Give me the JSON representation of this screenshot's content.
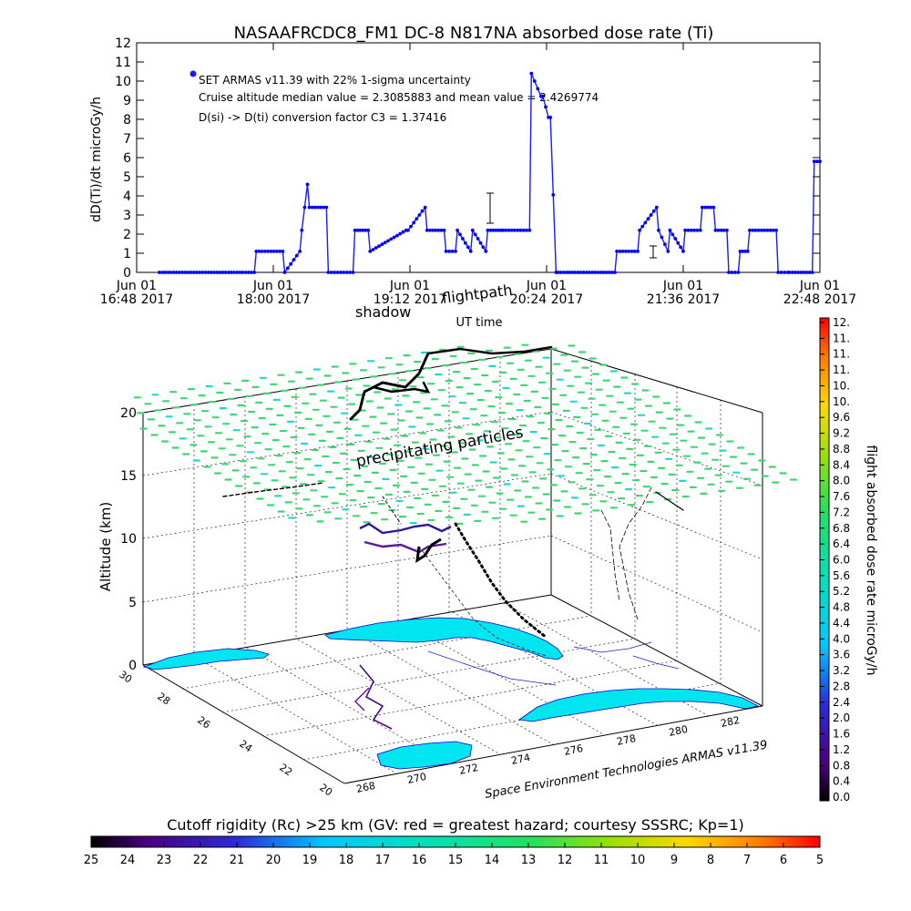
{
  "chart_data": [
    {
      "type": "line",
      "title": "NASAAFRCDC8_FM1 DC-8   N817NA absorbed dose rate (Ti)",
      "xlabel": "UT time",
      "ylabel": "dD(Ti)/dt microGy/h",
      "ylim": [
        0,
        12
      ],
      "yticks": [
        "0",
        "1",
        "2",
        "3",
        "4",
        "5",
        "6",
        "7",
        "8",
        "9",
        "10",
        "11",
        "12"
      ],
      "xticks": [
        {
          "date": "Jun 01",
          "time": "16:48 2017"
        },
        {
          "date": "Jun 01",
          "time": "18:00 2017"
        },
        {
          "date": "Jun 01",
          "time": "19:12 2017"
        },
        {
          "date": "Jun 01",
          "time": "20:24 2017"
        },
        {
          "date": "Jun 01",
          "time": "21:36 2017"
        },
        {
          "date": "Jun 01",
          "time": "22:48 2017"
        }
      ],
      "xlim": [
        "16:48",
        "22:48"
      ],
      "legend": [
        "SET ARMAS v11.39 with 22% 1-sigma uncertainty",
        "Cruise altitude median value = 2.3085883 and mean value = 2.4269774",
        "D(si) -> D(ti) conversion factor C3 = 1.37416"
      ],
      "series": [
        {
          "color": "#0000ff",
          "x": [
            "17:00",
            "17:50",
            "17:51",
            "18:05",
            "18:06",
            "18:14",
            "18:15",
            "18:18",
            "18:19",
            "18:28",
            "18:29",
            "18:42",
            "18:43",
            "18:50",
            "18:51",
            "19:10",
            "19:11",
            "19:20",
            "19:21",
            "19:30",
            "19:31",
            "19:36",
            "19:37",
            "19:44",
            "19:45",
            "19:52",
            "19:53",
            "20:00",
            "20:01",
            "20:15",
            "20:16",
            "20:21",
            "20:22",
            "20:25",
            "20:26",
            "20:29",
            "20:30",
            "21:00",
            "21:01",
            "21:12",
            "21:13",
            "21:22",
            "21:23",
            "21:28",
            "21:29",
            "21:36",
            "21:37",
            "21:45",
            "21:46",
            "21:52",
            "21:53",
            "21:59",
            "22:00",
            "22:05",
            "22:06",
            "22:10",
            "22:11",
            "22:25",
            "22:26",
            "22:31",
            "22:32",
            "22:44",
            "22:45",
            "22:48"
          ],
          "values": [
            0,
            0,
            1.1,
            1.1,
            0,
            1.1,
            2.2,
            4.6,
            3.4,
            3.4,
            0,
            0,
            2.2,
            2.2,
            1.1,
            2.2,
            2.2,
            3.4,
            2.2,
            2.2,
            1.1,
            1.1,
            2.2,
            1.1,
            2.2,
            1.1,
            2.2,
            2.2,
            2.2,
            2.2,
            10.4,
            9.2,
            9.2,
            8.1,
            8.1,
            0,
            0,
            0,
            1.1,
            1.1,
            2.2,
            3.4,
            2.2,
            1.1,
            2.2,
            1.1,
            2.2,
            2.2,
            3.4,
            3.4,
            2.2,
            2.2,
            0,
            0,
            1.1,
            1.1,
            2.2,
            2.2,
            0,
            0,
            0,
            0,
            5.8,
            5.8
          ]
        }
      ]
    },
    {
      "type": "scatter",
      "title": "",
      "zlabel": "Altitude (km)",
      "zticks": [
        "0",
        "5",
        "10",
        "15",
        "20"
      ],
      "xticks": [
        "268",
        "270",
        "272",
        "274",
        "276",
        "278",
        "280",
        "282"
      ],
      "yticks": [
        "20",
        "22",
        "24",
        "26",
        "28",
        "30"
      ],
      "annotations": [
        "precipitating particles",
        "shadow",
        "flightpath",
        "Space Environment Technologies ARMAS v11.39"
      ],
      "colorbar": {
        "label": "flight absorbed dose rate microGy/h",
        "ticks": [
          "0.0",
          "0.4",
          "0.8",
          "1.2",
          "1.6",
          "2.0",
          "2.4",
          "2.8",
          "3.2",
          "3.6",
          "4.0",
          "4.4",
          "4.8",
          "5.2",
          "5.6",
          "6.0",
          "6.4",
          "6.8",
          "7.2",
          "7.6",
          "8.0",
          "8.4",
          "8.8",
          "9.2",
          "9.6",
          "10.",
          "10.",
          "11.",
          "11.",
          "11.",
          "12."
        ]
      },
      "bottom_colorbar": {
        "label": "Cutoff rigidity (Rc) >25 km (GV: red = greatest hazard; courtesy SSSRC; Kp=1)",
        "ticks": [
          "25",
          "24",
          "23",
          "22",
          "21",
          "20",
          "19",
          "18",
          "17",
          "16",
          "15",
          "14",
          "13",
          "12",
          "11",
          "10",
          "9",
          "8",
          "7",
          "6",
          "5"
        ]
      }
    }
  ]
}
